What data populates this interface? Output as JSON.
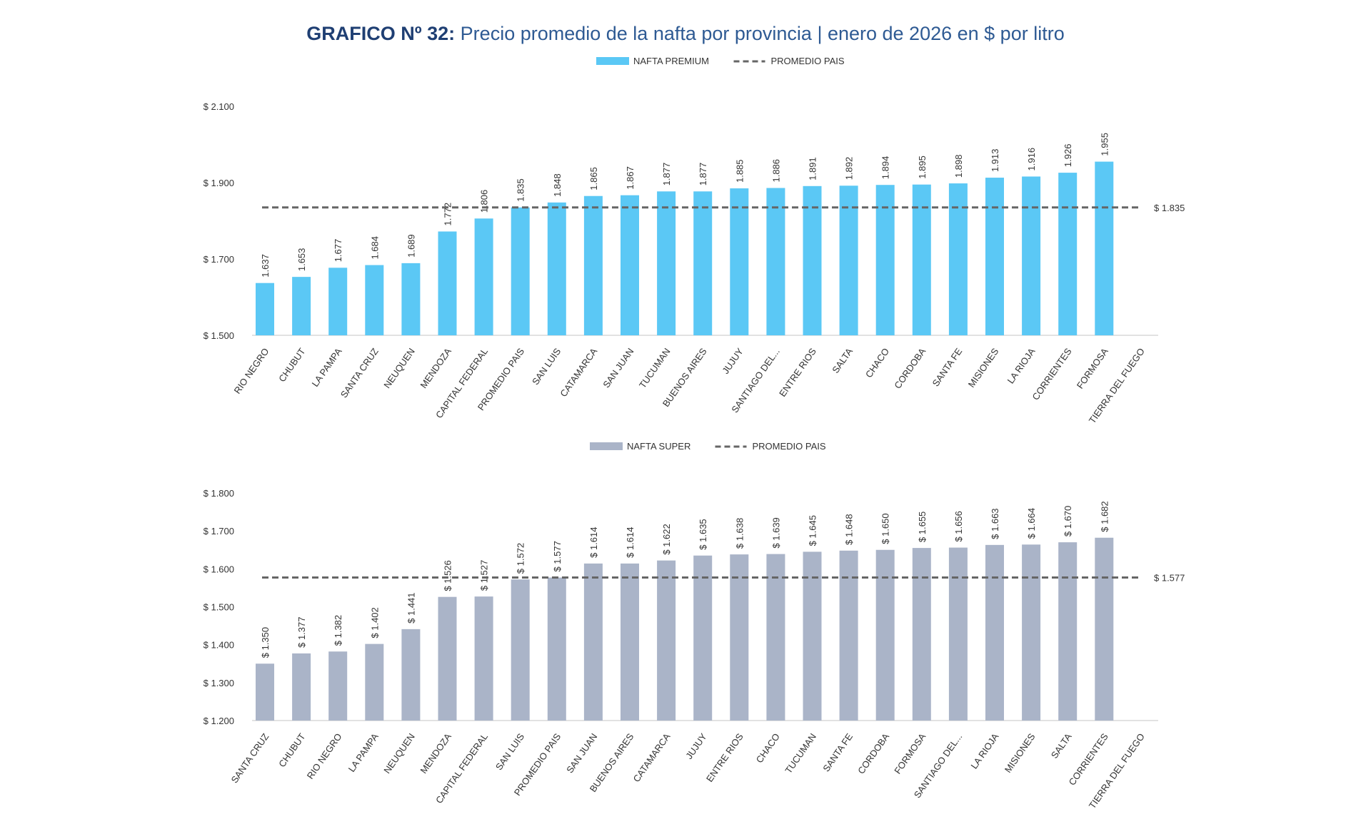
{
  "title": {
    "bold": "GRAFICO Nº 32:",
    "rest": " Precio promedio de la nafta por provincia | enero de 2026 en $ por litro"
  },
  "chart_data": [
    {
      "type": "bar",
      "legend": {
        "bar_label": "NAFTA PREMIUM",
        "line_label": "PROMEDIO PAIS",
        "placement": "top"
      },
      "bar_color": "#5bc8f5",
      "line_color": "#666666",
      "categories": [
        "RIO NEGRO",
        "CHUBUT",
        "LA PAMPA",
        "SANTA CRUZ",
        "NEUQUEN",
        "MENDOZA",
        "CAPITAL FEDERAL",
        "PROMEDIO PAIS",
        "SAN LUIS",
        "CATAMARCA",
        "SAN JUAN",
        "TUCUMAN",
        "BUENOS AIRES",
        "JUJUY",
        "SANTIAGO DEL...",
        "ENTRE RIOS",
        "SALTA",
        "CHACO",
        "CORDOBA",
        "SANTA FE",
        "MISIONES",
        "LA RIOJA",
        "CORRIENTES",
        "FORMOSA",
        "TIERRA DEL FUEGO"
      ],
      "values": [
        1637,
        1653,
        1677,
        1684,
        1689,
        1772,
        1806,
        1835,
        1848,
        1865,
        1867,
        1877,
        1877,
        1885,
        1886,
        1891,
        1892,
        1894,
        1895,
        1898,
        1913,
        1916,
        1926,
        1955,
        null
      ],
      "value_labels": [
        "1.637",
        "1.653",
        "1.677",
        "1.684",
        "1.689",
        "1.772",
        "1.806",
        "1.835",
        "1.848",
        "1.865",
        "1.867",
        "1.877",
        "1.877",
        "1.885",
        "1.886",
        "1.891",
        "1.892",
        "1.894",
        "1.895",
        "1.898",
        "1.913",
        "1.916",
        "1.926",
        "1.955",
        ""
      ],
      "average": 1835,
      "average_label": "$ 1.835",
      "ylim": [
        1500,
        2100
      ],
      "yticks": [
        1500,
        1700,
        1900,
        2100
      ],
      "ytick_labels": [
        "$ 1.500",
        "$ 1.700",
        "$ 1.900",
        "$ 2.100"
      ],
      "grid": false
    },
    {
      "type": "bar",
      "legend": {
        "bar_label": "NAFTA SUPER",
        "line_label": "PROMEDIO PAIS",
        "placement": "top"
      },
      "bar_color": "#aab4c8",
      "line_color": "#666666",
      "categories": [
        "SANTA CRUZ",
        "CHUBUT",
        "RIO NEGRO",
        "LA PAMPA",
        "NEUQUEN",
        "MENDOZA",
        "CAPITAL FEDERAL",
        "SAN LUIS",
        "PROMEDIO PAIS",
        "SAN JUAN",
        "BUENOS AIRES",
        "CATAMARCA",
        "JUJUY",
        "ENTRE RIOS",
        "CHACO",
        "TUCUMAN",
        "SANTA FE",
        "CORDOBA",
        "FORMOSA",
        "SANTIAGO DEL...",
        "LA RIOJA",
        "MISIONES",
        "SALTA",
        "CORRIENTES",
        "TIERRA DEL FUEGO"
      ],
      "values": [
        1350,
        1377,
        1382,
        1402,
        1441,
        1526,
        1527,
        1572,
        1577,
        1614,
        1614,
        1622,
        1635,
        1638,
        1639,
        1645,
        1648,
        1650,
        1655,
        1656,
        1663,
        1664,
        1670,
        1682,
        null
      ],
      "value_labels": [
        "$ 1.350",
        "$ 1.377",
        "$ 1.382",
        "$ 1.402",
        "$ 1.441",
        "$ 1.526",
        "$ 1.527",
        "$ 1.572",
        "$ 1.577",
        "$ 1.614",
        "$ 1.614",
        "$ 1.622",
        "$ 1.635",
        "$ 1.638",
        "$ 1.639",
        "$ 1.645",
        "$ 1.648",
        "$ 1.650",
        "$ 1.655",
        "$ 1.656",
        "$ 1.663",
        "$ 1.664",
        "$ 1.670",
        "$ 1.682",
        ""
      ],
      "average": 1577,
      "average_label": "$ 1.577",
      "ylim": [
        1200,
        1800
      ],
      "yticks": [
        1200,
        1300,
        1400,
        1500,
        1600,
        1700,
        1800
      ],
      "ytick_labels": [
        "$ 1.200",
        "$ 1.300",
        "$ 1.400",
        "$ 1.500",
        "$ 1.600",
        "$ 1.700",
        "$ 1.800"
      ],
      "grid": false
    }
  ]
}
